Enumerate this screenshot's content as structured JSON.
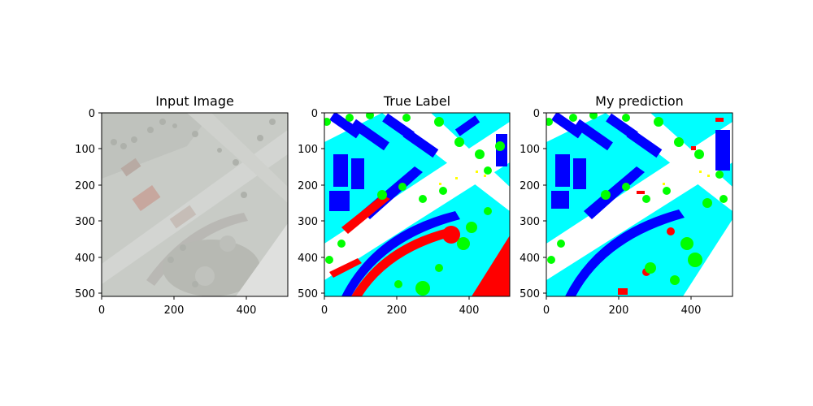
{
  "panels": [
    {
      "id": "input",
      "title": "Input Image",
      "x_ticks": [
        "0",
        "200",
        "400"
      ],
      "y_ticks": [
        "0",
        "100",
        "200",
        "300",
        "400",
        "500"
      ]
    },
    {
      "id": "true",
      "title": "True Label",
      "x_ticks": [
        "0",
        "200",
        "400"
      ],
      "y_ticks": [
        "0",
        "100",
        "200",
        "300",
        "400",
        "500"
      ]
    },
    {
      "id": "pred",
      "title": "My prediction",
      "x_ticks": [
        "0",
        "200",
        "400"
      ],
      "y_ticks": [
        "0",
        "100",
        "200",
        "300",
        "400",
        "500"
      ]
    }
  ],
  "colors": {
    "building": "#0000ff",
    "tree": "#00ff00",
    "low_vegetation": "#00ffff",
    "clutter": "#ff0000",
    "impervious": "#ffffff",
    "car": "#ffff00",
    "photo_gray": "#c9cbc6"
  }
}
